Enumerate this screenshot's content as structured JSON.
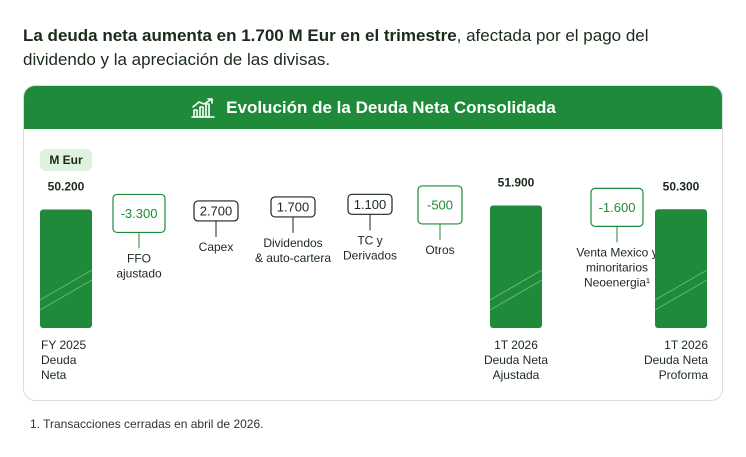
{
  "headline": {
    "bold": "La deuda neta aumenta en 1.700 M Eur en el trimestre",
    "rest": ", afectada por el pago del dividendo y la apreciación de las divisas."
  },
  "card": {
    "title": "Evolución de la Deuda Neta Consolidada",
    "title_icon": "bar-chart-growth-icon",
    "unit": "M Eur"
  },
  "footnote": "1. Transacciones cerradas en abril de 2026.",
  "colors": {
    "total": "#1e8a3a",
    "total_dark": "#177531",
    "outline": "#1e8a3a",
    "text": "#1b2a1b"
  },
  "chart_data": {
    "type": "bar",
    "subtype": "waterfall",
    "unit": "M Eur",
    "categories": [
      "FY 2025 Deuda Neta",
      "FFO ajustado",
      "Capex",
      "Dividendos & auto-cartera",
      "TC y Derivados",
      "Otros",
      "1T 2026 Deuda Neta Ajustada",
      "Venta Mexico y minoritarios Neoenergia¹",
      "1T 2026 Deuda Neta Proforma"
    ],
    "label_lines": [
      [
        "FY 2025",
        "Deuda",
        "Neta"
      ],
      [
        "FFO",
        "ajustado"
      ],
      [
        "Capex"
      ],
      [
        "Dividendos",
        "& auto-cartera"
      ],
      [
        "TC y",
        "Derivados"
      ],
      [
        "Otros"
      ],
      [
        "1T 2026",
        "Deuda Neta",
        "Ajustada"
      ],
      [
        "Venta Mexico y",
        "minoritarios",
        "Neoenergia¹"
      ],
      [
        "1T 2026",
        "Deuda Neta",
        "Proforma"
      ]
    ],
    "values": [
      50200,
      -3300,
      2700,
      1700,
      1100,
      -500,
      51900,
      -1600,
      50300
    ],
    "value_labels": [
      "50.200",
      "-3.300",
      "2.700",
      "1.700",
      "1.100",
      "-500",
      "51.900",
      "-1.600",
      "50.300"
    ],
    "kinds": [
      "total",
      "negative",
      "positive",
      "positive",
      "positive",
      "negative",
      "total",
      "negative",
      "total"
    ]
  }
}
